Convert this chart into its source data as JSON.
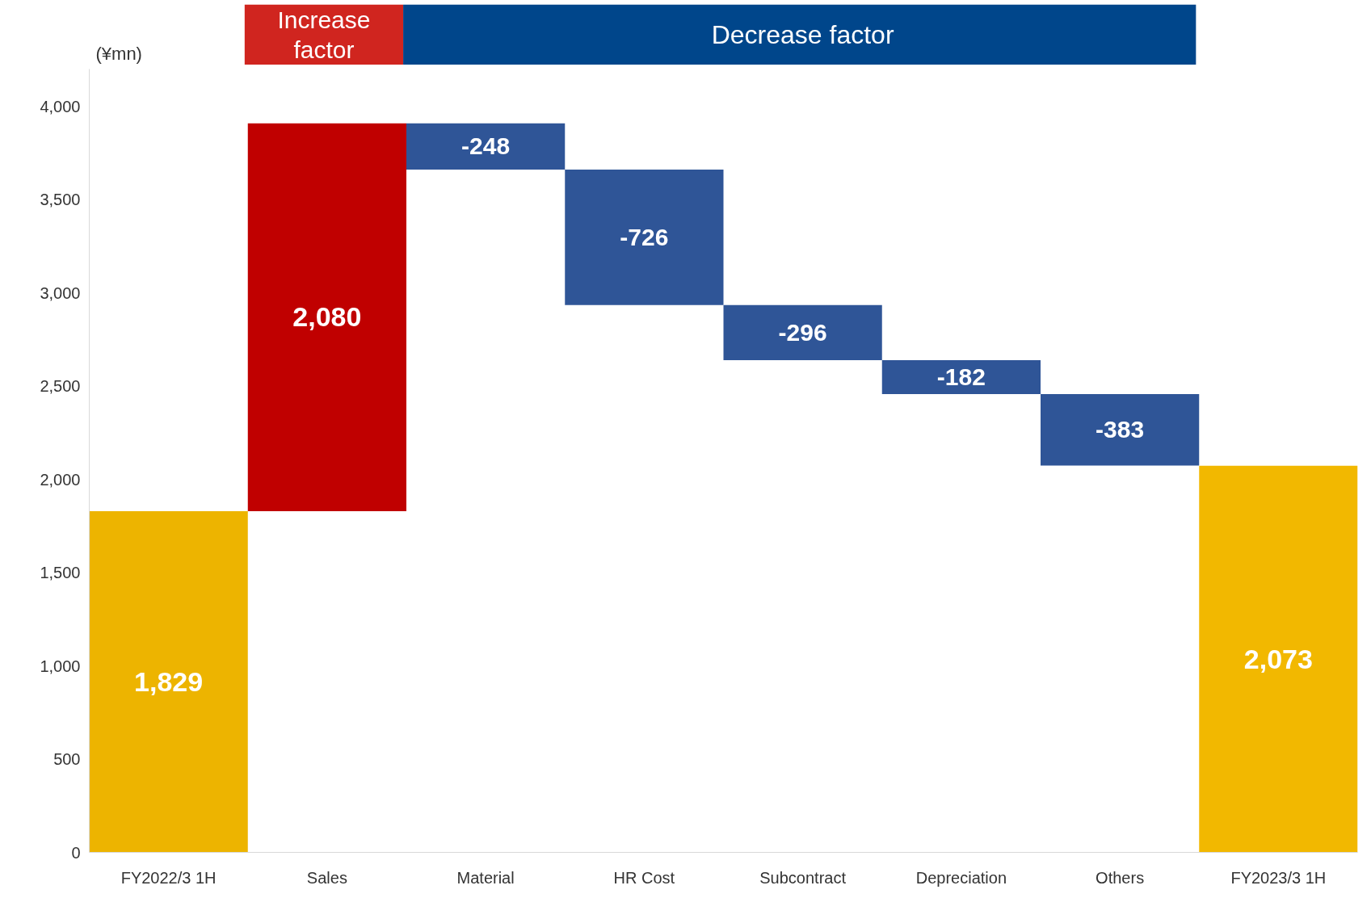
{
  "chart_data": {
    "type": "bar",
    "categories": [
      "FY2022/3 1H",
      "Sales",
      "Material",
      "HR Cost",
      "Subcontract",
      "Depreciation",
      "Others",
      "FY2023/3 1H"
    ],
    "values": [
      1829,
      2080,
      -248,
      -726,
      -296,
      -182,
      -383,
      2073
    ],
    "base": [
      0,
      1829,
      3909,
      3661,
      2935,
      2639,
      2457,
      0
    ],
    "colors": [
      "#edb400",
      "#c00000",
      "#2f5597",
      "#2f5597",
      "#2f5597",
      "#2f5597",
      "#2f5597",
      "#f2b800"
    ],
    "value_labels": [
      "1,829",
      "2,080",
      "-248",
      "-726",
      "-296",
      "-182",
      "-383",
      "2,073"
    ],
    "ylabel": "(¥mn)",
    "ylim": [
      0,
      4200
    ],
    "yticks": [
      0,
      500,
      {
        "value": 1000,
        "label": "1,000"
      },
      {
        "value": 1500,
        "label": "1,500"
      },
      {
        "value": 2000,
        "label": "2,000"
      },
      {
        "value": 2500,
        "label": "2,500"
      },
      {
        "value": 3000,
        "label": "3,000"
      },
      {
        "value": 3500,
        "label": "3,500"
      },
      {
        "value": 4000,
        "label": "4,000"
      }
    ],
    "annotations": [
      "Increase factor",
      "Decrease factor"
    ],
    "grid": false
  }
}
